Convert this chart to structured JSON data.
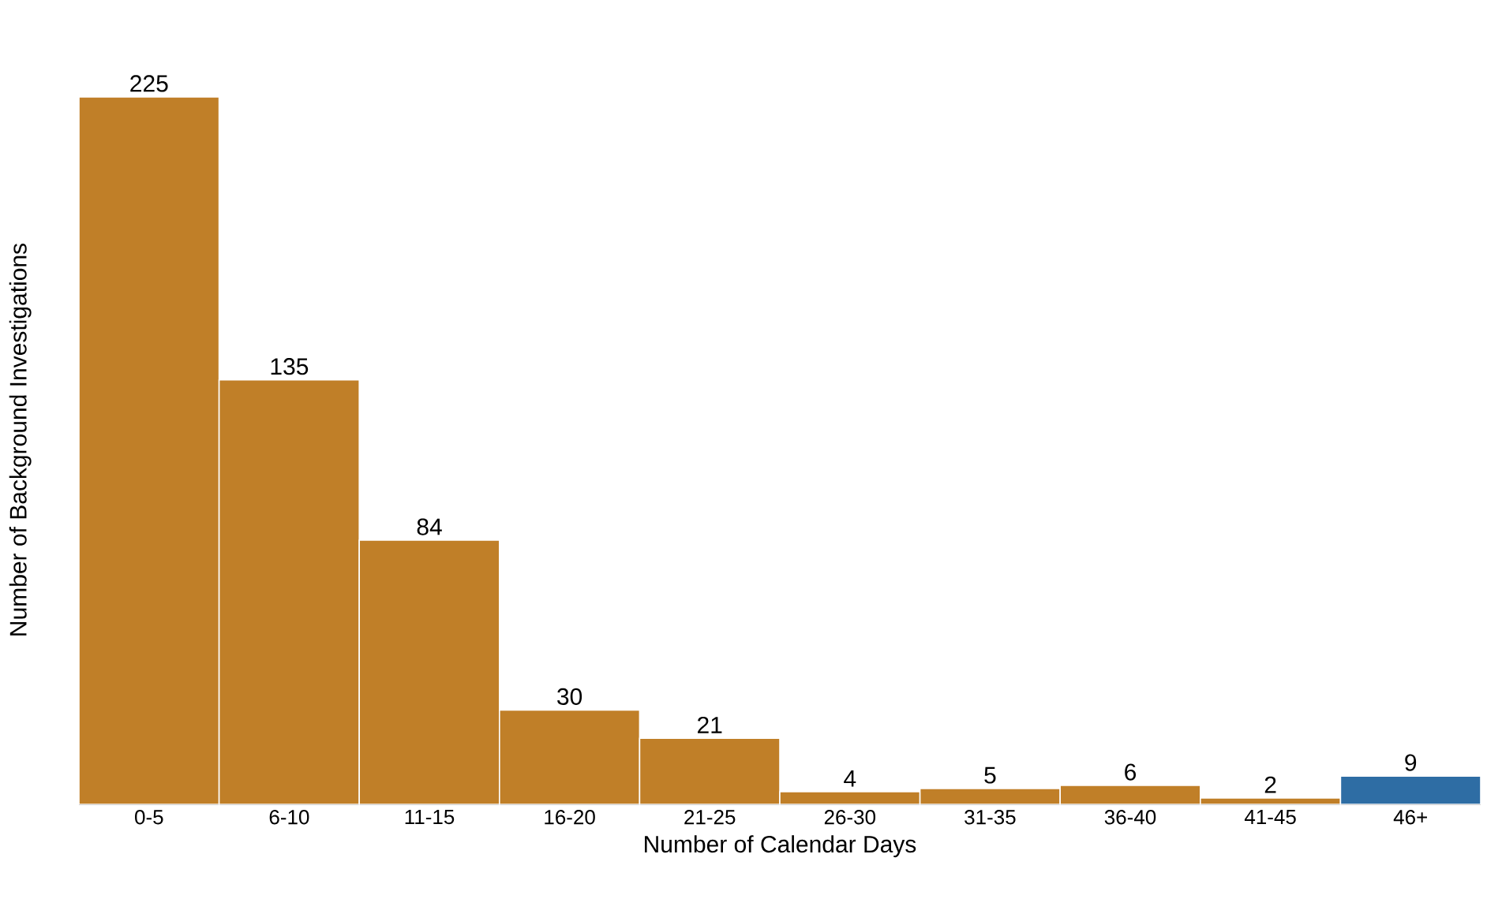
{
  "chart_data": {
    "type": "bar",
    "xlabel": "Number of Calendar Days",
    "ylabel": "Number of Background Investigations",
    "categories": [
      "0-5",
      "6-10",
      "11-15",
      "16-20",
      "21-25",
      "26-30",
      "31-35",
      "36-40",
      "41-45",
      "46+"
    ],
    "values": [
      225,
      135,
      84,
      30,
      21,
      4,
      5,
      6,
      2,
      9
    ],
    "colors": [
      "#c07f28",
      "#c07f28",
      "#c07f28",
      "#c07f28",
      "#c07f28",
      "#c07f28",
      "#c07f28",
      "#c07f28",
      "#c07f28",
      "#2e6da4"
    ],
    "data_labels": true,
    "tick_labels": "x"
  }
}
